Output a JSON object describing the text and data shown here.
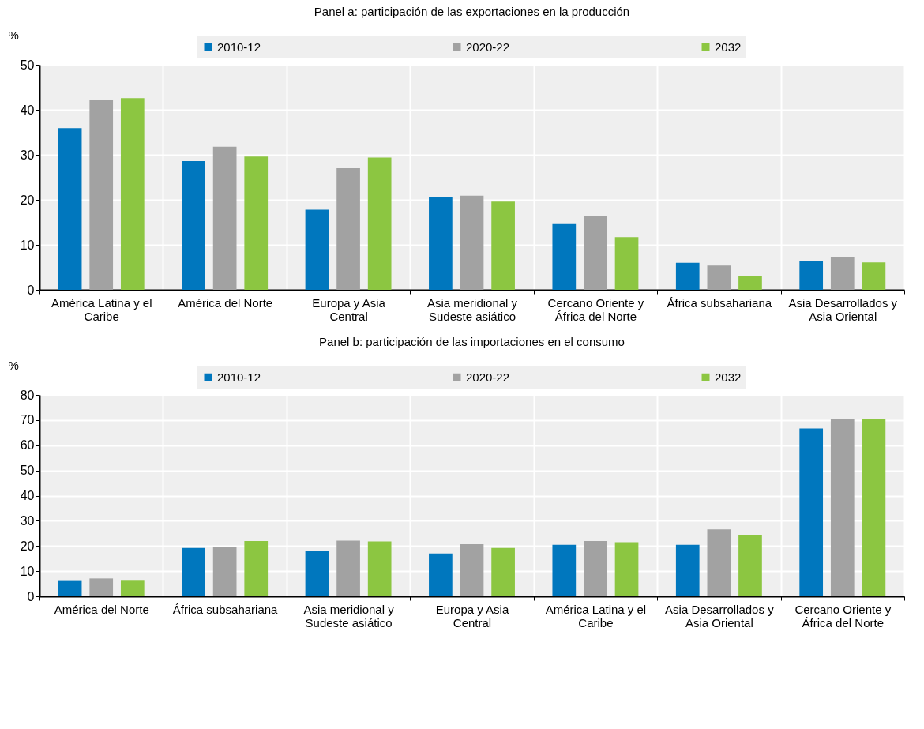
{
  "chart_data": [
    {
      "type": "bar",
      "title": "Panel a: participación de las exportaciones en la producción",
      "ylabel": "%",
      "categories": [
        "América Latina y el\nCaribe",
        "América del Norte",
        "Europa y Asia\nCentral",
        "Asia meridional y\nSudeste asiático",
        "Cercano Oriente y\nÁfrica del Norte",
        "África subsahariana",
        "Asia Desarrollados y\nAsia Oriental"
      ],
      "series": [
        {
          "name": "2010-12",
          "color": "#0077be",
          "values": [
            35.9,
            28.6,
            17.8,
            20.6,
            14.8,
            6.0,
            6.5
          ]
        },
        {
          "name": "2020-22",
          "color": "#a2a2a2",
          "values": [
            42.2,
            31.8,
            27.0,
            20.9,
            16.3,
            5.4,
            7.3
          ]
        },
        {
          "name": "2032",
          "color": "#8cc641",
          "values": [
            42.6,
            29.6,
            29.4,
            19.6,
            11.7,
            3.0,
            6.1
          ]
        }
      ],
      "ylim": [
        0,
        50
      ],
      "yticks": [
        0,
        10,
        20,
        30,
        40,
        50
      ],
      "grid": true,
      "legend": "top"
    },
    {
      "type": "bar",
      "title": "Panel b: participación de las importaciones en el consumo",
      "ylabel": "%",
      "categories": [
        "América del Norte",
        "África subsahariana",
        "Asia meridional y\nSudeste asiático",
        "Europa y Asia\nCentral",
        "América Latina y el\nCaribe",
        "Asia Desarrollados y\nAsia Oriental",
        "Cercano Oriente y\nÁfrica del Norte"
      ],
      "series": [
        {
          "name": "2010-12",
          "color": "#0077be",
          "values": [
            6.4,
            19.2,
            18.0,
            17.0,
            20.5,
            20.5,
            66.7
          ]
        },
        {
          "name": "2020-22",
          "color": "#a2a2a2",
          "values": [
            7.1,
            19.7,
            22.1,
            20.7,
            22.0,
            26.6,
            70.3
          ]
        },
        {
          "name": "2032",
          "color": "#8cc641",
          "values": [
            6.5,
            22.0,
            21.8,
            19.2,
            21.5,
            24.5,
            70.3
          ]
        }
      ],
      "ylim": [
        0,
        80
      ],
      "yticks": [
        0,
        10,
        20,
        30,
        40,
        50,
        60,
        70,
        80
      ],
      "grid": true,
      "legend": "top"
    }
  ]
}
